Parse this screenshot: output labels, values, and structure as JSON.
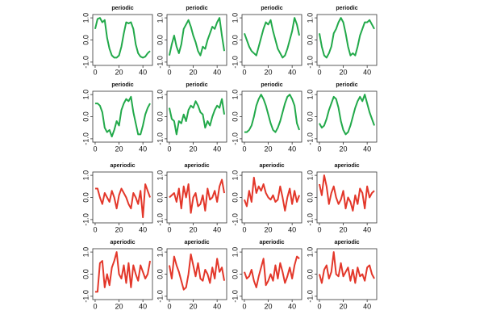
{
  "chart_data": [
    {
      "type": "line",
      "title": "periodic",
      "color": "#22a94a",
      "x": [
        0,
        2,
        4,
        6,
        8,
        10,
        12,
        14,
        16,
        18,
        20,
        22,
        24,
        26,
        28,
        30,
        32,
        34,
        36,
        38,
        40,
        42,
        44,
        46
      ],
      "values": [
        0.5,
        0.95,
        1.0,
        0.8,
        0.9,
        0.1,
        -0.4,
        -0.7,
        -0.8,
        -0.8,
        -0.7,
        -0.3,
        0.3,
        0.8,
        0.75,
        0.8,
        0.5,
        -0.2,
        -0.6,
        -0.75,
        -0.8,
        -0.75,
        -0.6,
        -0.5
      ],
      "xlim": [
        -2,
        48
      ],
      "ylim": [
        -1.15,
        1.15
      ],
      "xticks": [
        0,
        20,
        40
      ],
      "yticks": [
        {
          "value": -1,
          "label": "-1.0"
        },
        {
          "value": 0,
          "label": "0.0"
        },
        {
          "value": 1,
          "label": "1.0"
        }
      ]
    },
    {
      "type": "line",
      "title": "periodic",
      "color": "#22a94a",
      "x": [
        0,
        2,
        4,
        6,
        8,
        10,
        12,
        14,
        16,
        18,
        20,
        22,
        24,
        26,
        28,
        30,
        32,
        34,
        36,
        38,
        40,
        42,
        44,
        46
      ],
      "values": [
        -0.7,
        -0.2,
        0.2,
        -0.3,
        -0.6,
        -0.2,
        0.5,
        0.7,
        0.9,
        0.6,
        0.2,
        -0.1,
        -0.5,
        -0.7,
        -0.3,
        -0.4,
        0.0,
        0.3,
        0.6,
        0.5,
        0.8,
        1.0,
        0.2,
        -0.5
      ],
      "xlim": [
        -2,
        48
      ],
      "ylim": [
        -1.15,
        1.15
      ],
      "xticks": [
        0,
        20,
        40
      ],
      "yticks": [
        {
          "value": -1,
          "label": "-1.0"
        },
        {
          "value": 0,
          "label": "0.0"
        },
        {
          "value": 1,
          "label": "1.0"
        }
      ]
    },
    {
      "type": "line",
      "title": "periodic",
      "color": "#22a94a",
      "x": [
        0,
        2,
        4,
        6,
        8,
        10,
        12,
        14,
        16,
        18,
        20,
        22,
        24,
        26,
        28,
        30,
        32,
        34,
        36,
        38,
        40,
        42,
        44,
        46
      ],
      "values": [
        0.3,
        0.0,
        -0.3,
        -0.5,
        -0.6,
        -0.7,
        -0.3,
        0.1,
        0.5,
        0.8,
        0.7,
        0.9,
        0.4,
        0.0,
        -0.4,
        -0.6,
        -0.8,
        -0.7,
        -0.4,
        0.0,
        0.4,
        1.0,
        0.7,
        0.2
      ],
      "xlim": [
        -2,
        48
      ],
      "ylim": [
        -1.15,
        1.15
      ],
      "xticks": [
        0,
        20,
        40
      ],
      "yticks": [
        {
          "value": -1,
          "label": "-1.0"
        },
        {
          "value": 0,
          "label": "0.0"
        },
        {
          "value": 1,
          "label": "1.0"
        }
      ]
    },
    {
      "type": "line",
      "title": "periodic",
      "color": "#22a94a",
      "x": [
        0,
        2,
        4,
        6,
        8,
        10,
        12,
        14,
        16,
        18,
        20,
        22,
        24,
        26,
        28,
        30,
        32,
        34,
        36,
        38,
        40,
        42,
        44,
        46
      ],
      "values": [
        0.3,
        -0.3,
        -0.7,
        -0.8,
        -0.6,
        -0.3,
        0.3,
        0.5,
        0.8,
        1.0,
        0.8,
        0.3,
        -0.3,
        -0.7,
        -0.6,
        -0.7,
        -0.3,
        0.2,
        0.5,
        0.8,
        0.8,
        0.9,
        0.7,
        0.5
      ],
      "xlim": [
        -2,
        48
      ],
      "ylim": [
        -1.15,
        1.15
      ],
      "xticks": [
        0,
        20,
        40
      ],
      "yticks": [
        {
          "value": -1,
          "label": "-1.0"
        },
        {
          "value": 0,
          "label": "0.0"
        },
        {
          "value": 1,
          "label": "1.0"
        }
      ]
    },
    {
      "type": "line",
      "title": "periodic",
      "color": "#22a94a",
      "x": [
        0,
        2,
        4,
        6,
        8,
        10,
        12,
        14,
        16,
        18,
        20,
        22,
        24,
        26,
        28,
        30,
        32,
        34,
        36,
        38,
        40,
        42,
        44,
        46
      ],
      "values": [
        0.6,
        0.6,
        0.5,
        0.2,
        -0.5,
        -0.7,
        -0.6,
        -0.9,
        -0.6,
        -0.2,
        -0.4,
        0.3,
        0.6,
        0.8,
        0.7,
        0.9,
        0.2,
        -0.3,
        -0.8,
        -0.8,
        -0.4,
        0.1,
        0.4,
        0.6
      ],
      "xlim": [
        -2,
        48
      ],
      "ylim": [
        -1.15,
        1.15
      ],
      "xticks": [
        0,
        20,
        40
      ],
      "yticks": [
        {
          "value": -1,
          "label": "-1.0"
        },
        {
          "value": 0,
          "label": "0.0"
        },
        {
          "value": 1,
          "label": "1.0"
        }
      ]
    },
    {
      "type": "line",
      "title": "periodic",
      "color": "#22a94a",
      "x": [
        0,
        2,
        4,
        6,
        8,
        10,
        12,
        14,
        16,
        18,
        20,
        22,
        24,
        26,
        28,
        30,
        32,
        34,
        36,
        38,
        40,
        42,
        44,
        46
      ],
      "values": [
        0.4,
        -0.1,
        -0.2,
        -0.8,
        -0.2,
        -0.3,
        0.1,
        -0.2,
        0.3,
        0.5,
        0.4,
        0.7,
        0.5,
        0.2,
        0.1,
        -0.5,
        -0.2,
        -0.4,
        0.0,
        0.3,
        0.5,
        0.4,
        0.8,
        0.1
      ],
      "xlim": [
        -2,
        48
      ],
      "ylim": [
        -1.15,
        1.15
      ],
      "xticks": [
        0,
        20,
        40
      ],
      "yticks": [
        {
          "value": -1,
          "label": "-1.0"
        },
        {
          "value": 0,
          "label": "0.0"
        },
        {
          "value": 1,
          "label": "1.0"
        }
      ]
    },
    {
      "type": "line",
      "title": "periodic",
      "color": "#22a94a",
      "x": [
        0,
        2,
        4,
        6,
        8,
        10,
        12,
        14,
        16,
        18,
        20,
        22,
        24,
        26,
        28,
        30,
        32,
        34,
        36,
        38,
        40,
        42,
        44,
        46
      ],
      "values": [
        -0.7,
        -0.7,
        -0.6,
        -0.4,
        0.0,
        0.5,
        0.8,
        1.0,
        0.8,
        0.5,
        0.1,
        -0.3,
        -0.6,
        -0.7,
        -0.5,
        -0.2,
        0.2,
        0.6,
        0.9,
        1.0,
        0.8,
        0.5,
        -0.3,
        -0.6
      ],
      "xlim": [
        -2,
        48
      ],
      "ylim": [
        -1.15,
        1.15
      ],
      "xticks": [
        0,
        20,
        40
      ],
      "yticks": [
        {
          "value": -1,
          "label": "-1.0"
        },
        {
          "value": 0,
          "label": "0.0"
        },
        {
          "value": 1,
          "label": "1.0"
        }
      ]
    },
    {
      "type": "line",
      "title": "periodic",
      "color": "#22a94a",
      "x": [
        0,
        2,
        4,
        6,
        8,
        10,
        12,
        14,
        16,
        18,
        20,
        22,
        24,
        26,
        28,
        30,
        32,
        34,
        36,
        38,
        40,
        42,
        44,
        46
      ],
      "values": [
        -0.3,
        -0.5,
        -0.4,
        -0.1,
        0.3,
        0.6,
        0.9,
        0.8,
        0.4,
        -0.2,
        -0.6,
        -0.8,
        -0.7,
        -0.4,
        0.0,
        0.4,
        0.7,
        0.9,
        0.7,
        1.0,
        0.6,
        0.2,
        -0.1,
        -0.4
      ],
      "xlim": [
        -2,
        48
      ],
      "ylim": [
        -1.15,
        1.15
      ],
      "xticks": [
        0,
        20,
        40
      ],
      "yticks": [
        {
          "value": -1,
          "label": "-1.0"
        },
        {
          "value": 0,
          "label": "0.0"
        },
        {
          "value": 1,
          "label": "1.0"
        }
      ]
    },
    {
      "type": "line",
      "title": "aperiodic",
      "color": "#e3372a",
      "x": [
        0,
        2,
        4,
        6,
        8,
        10,
        12,
        14,
        16,
        18,
        20,
        22,
        24,
        26,
        28,
        30,
        32,
        34,
        36,
        38,
        40,
        42,
        44,
        46
      ],
      "values": [
        0.4,
        0.4,
        0.0,
        -0.3,
        0.2,
        0.0,
        -0.2,
        0.3,
        0.0,
        -0.5,
        0.1,
        0.4,
        0.2,
        0.0,
        -0.3,
        -0.5,
        0.2,
        0.0,
        -0.3,
        0.3,
        -0.9,
        0.6,
        0.3,
        0.0
      ],
      "xlim": [
        -2,
        48
      ],
      "ylim": [
        -1.15,
        1.15
      ],
      "xticks": [
        0,
        20,
        40
      ],
      "yticks": [
        {
          "value": -1,
          "label": "-1.0"
        },
        {
          "value": 0,
          "label": "0.0"
        },
        {
          "value": 1,
          "label": "1.0"
        }
      ]
    },
    {
      "type": "line",
      "title": "aperiodic",
      "color": "#e3372a",
      "x": [
        0,
        2,
        4,
        6,
        8,
        10,
        12,
        14,
        16,
        18,
        20,
        22,
        24,
        26,
        28,
        30,
        32,
        34,
        36,
        38,
        40,
        42,
        44,
        46
      ],
      "values": [
        0.0,
        0.1,
        0.2,
        -0.2,
        0.4,
        -0.5,
        0.5,
        0.0,
        0.6,
        -0.7,
        0.0,
        0.2,
        -0.4,
        -0.3,
        0.1,
        -0.6,
        0.4,
        -0.1,
        0.0,
        0.3,
        -0.2,
        0.5,
        0.8,
        0.2
      ],
      "xlim": [
        -2,
        48
      ],
      "ylim": [
        -1.15,
        1.15
      ],
      "xticks": [
        0,
        20,
        40
      ],
      "yticks": [
        {
          "value": -1,
          "label": "-1.0"
        },
        {
          "value": 0,
          "label": "0.0"
        },
        {
          "value": 1,
          "label": "1.0"
        }
      ]
    },
    {
      "type": "line",
      "title": "aperiodic",
      "color": "#e3372a",
      "x": [
        0,
        2,
        4,
        6,
        8,
        10,
        12,
        14,
        16,
        18,
        20,
        22,
        24,
        26,
        28,
        30,
        32,
        34,
        36,
        38,
        40,
        42,
        44,
        46
      ],
      "values": [
        -0.1,
        -0.4,
        0.3,
        -0.2,
        0.9,
        0.2,
        0.5,
        0.3,
        0.6,
        0.2,
        0.0,
        -0.1,
        0.1,
        -0.2,
        -0.1,
        0.5,
        0.0,
        -0.6,
        0.0,
        0.4,
        -0.3,
        0.3,
        -0.2,
        0.1
      ],
      "xlim": [
        -2,
        48
      ],
      "ylim": [
        -1.15,
        1.15
      ],
      "xticks": [
        0,
        20,
        40
      ],
      "yticks": [
        {
          "value": -1,
          "label": "-1.0"
        },
        {
          "value": 0,
          "label": "0.0"
        },
        {
          "value": 1,
          "label": "1.0"
        }
      ]
    },
    {
      "type": "line",
      "title": "aperiodic",
      "color": "#e3372a",
      "x": [
        0,
        2,
        4,
        6,
        8,
        10,
        12,
        14,
        16,
        18,
        20,
        22,
        24,
        26,
        28,
        30,
        32,
        34,
        36,
        38,
        40,
        42,
        44,
        46
      ],
      "values": [
        0.6,
        0.1,
        1.0,
        0.5,
        -0.3,
        0.2,
        0.5,
        0.0,
        -0.3,
        -0.1,
        0.3,
        -0.5,
        0.0,
        -0.2,
        -0.6,
        0.1,
        -0.3,
        0.4,
        0.2,
        -0.5,
        0.5,
        0.0,
        0.2,
        0.3
      ],
      "xlim": [
        -2,
        48
      ],
      "ylim": [
        -1.15,
        1.15
      ],
      "xticks": [
        0,
        20,
        40
      ],
      "yticks": [
        {
          "value": -1,
          "label": "-1.0"
        },
        {
          "value": 0,
          "label": "0.0"
        },
        {
          "value": 1,
          "label": "1.0"
        }
      ]
    },
    {
      "type": "line",
      "title": "aperiodic",
      "color": "#e3372a",
      "x": [
        0,
        2,
        4,
        6,
        8,
        10,
        12,
        14,
        16,
        18,
        20,
        22,
        24,
        26,
        28,
        30,
        32,
        34,
        36,
        38,
        40,
        42,
        44,
        46
      ],
      "values": [
        -0.8,
        -0.8,
        0.5,
        0.6,
        -0.6,
        0.0,
        -0.5,
        0.3,
        0.6,
        1.0,
        0.0,
        -0.2,
        0.4,
        -0.4,
        0.5,
        -0.6,
        0.4,
        0.0,
        -0.3,
        0.4,
        0.1,
        -0.2,
        0.0,
        0.6
      ],
      "xlim": [
        -2,
        48
      ],
      "ylim": [
        -1.15,
        1.15
      ],
      "xticks": [
        0,
        20,
        40
      ],
      "yticks": [
        {
          "value": -1,
          "label": "-1.0"
        },
        {
          "value": 0,
          "label": "0.0"
        },
        {
          "value": 1,
          "label": "1.0"
        }
      ]
    },
    {
      "type": "line",
      "title": "aperiodic",
      "color": "#e3372a",
      "x": [
        0,
        2,
        4,
        6,
        8,
        10,
        12,
        14,
        16,
        18,
        20,
        22,
        24,
        26,
        28,
        30,
        32,
        34,
        36,
        38,
        40,
        42,
        44,
        46
      ],
      "values": [
        0.4,
        -0.2,
        0.8,
        0.4,
        0.1,
        -0.3,
        -0.7,
        -0.6,
        0.0,
        0.9,
        0.4,
        -0.1,
        0.5,
        -0.2,
        -0.3,
        0.2,
        0.0,
        -0.4,
        0.3,
        -0.2,
        0.7,
        0.1,
        0.3,
        -0.3
      ],
      "xlim": [
        -2,
        48
      ],
      "ylim": [
        -1.15,
        1.15
      ],
      "xticks": [
        0,
        20,
        40
      ],
      "yticks": [
        {
          "value": -1,
          "label": "-1.0"
        },
        {
          "value": 0,
          "label": "0.0"
        },
        {
          "value": 1,
          "label": "1.0"
        }
      ]
    },
    {
      "type": "line",
      "title": "aperiodic",
      "color": "#e3372a",
      "x": [
        0,
        2,
        4,
        6,
        8,
        10,
        12,
        14,
        16,
        18,
        20,
        22,
        24,
        26,
        28,
        30,
        32,
        34,
        36,
        38,
        40,
        42,
        44,
        46
      ],
      "values": [
        0.1,
        -0.2,
        -0.1,
        0.2,
        -0.3,
        -0.6,
        -0.1,
        0.3,
        0.7,
        -0.5,
        -0.3,
        0.0,
        -0.3,
        0.4,
        -0.2,
        0.5,
        0.1,
        -0.4,
        -0.1,
        0.3,
        -0.2,
        0.4,
        0.8,
        0.7
      ],
      "xlim": [
        -2,
        48
      ],
      "ylim": [
        -1.15,
        1.15
      ],
      "xticks": [
        0,
        20,
        40
      ],
      "yticks": [
        {
          "value": -1,
          "label": "-1.0"
        },
        {
          "value": 0,
          "label": "0.0"
        },
        {
          "value": 1,
          "label": "1.0"
        }
      ]
    },
    {
      "type": "line",
      "title": "aperiodic",
      "color": "#e3372a",
      "x": [
        0,
        2,
        4,
        6,
        8,
        10,
        12,
        14,
        16,
        18,
        20,
        22,
        24,
        26,
        28,
        30,
        32,
        34,
        36,
        38,
        40,
        42,
        44,
        46
      ],
      "values": [
        0.0,
        -0.4,
        0.2,
        0.4,
        -0.2,
        0.1,
        1.0,
        0.0,
        -0.1,
        0.5,
        -0.1,
        0.1,
        0.3,
        -0.3,
        0.2,
        -0.4,
        0.3,
        -0.1,
        0.0,
        -0.3,
        0.3,
        0.4,
        0.0,
        -0.2
      ],
      "xlim": [
        -2,
        48
      ],
      "ylim": [
        -1.15,
        1.15
      ],
      "xticks": [
        0,
        20,
        40
      ],
      "yticks": [
        {
          "value": -1,
          "label": "-1.0"
        },
        {
          "value": 0,
          "label": "0.0"
        },
        {
          "value": 1,
          "label": "1.0"
        }
      ]
    }
  ]
}
